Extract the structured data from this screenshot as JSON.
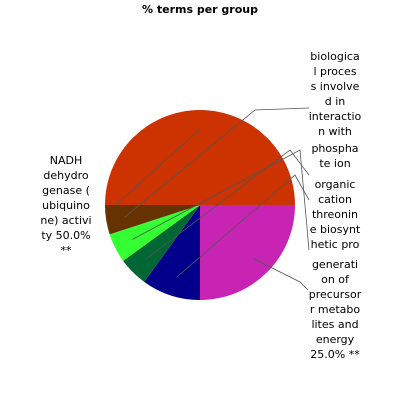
{
  "chart_data": {
    "type": "pie",
    "title": "% terms per group",
    "slices": [
      {
        "value": 25.0,
        "color": "#c824b4",
        "label": [
          "generati",
          "on of",
          "precursor",
          "r metabo",
          "lites and",
          "energy",
          "25.0% **"
        ]
      },
      {
        "value": 10.0,
        "color": "#00008b",
        "label": [
          "organic",
          "cation"
        ]
      },
      {
        "value": 5.0,
        "color": "#006633",
        "label": [
          "phospha",
          "te ion"
        ]
      },
      {
        "value": 5.0,
        "color": "#33ff33",
        "label": [
          "threonin",
          "e biosynt",
          "hetic pro"
        ]
      },
      {
        "value": 5.0,
        "color": "#663300",
        "label": [
          "biologica",
          "l proces",
          "s involve",
          "d in",
          "interactio",
          "n with"
        ]
      },
      {
        "value": 50.0,
        "color": "#cc3300",
        "label": [
          "NADH",
          "dehydro",
          "genase (",
          "ubiquino",
          "ne) activi",
          "ty 50.0%",
          "**"
        ]
      }
    ]
  }
}
